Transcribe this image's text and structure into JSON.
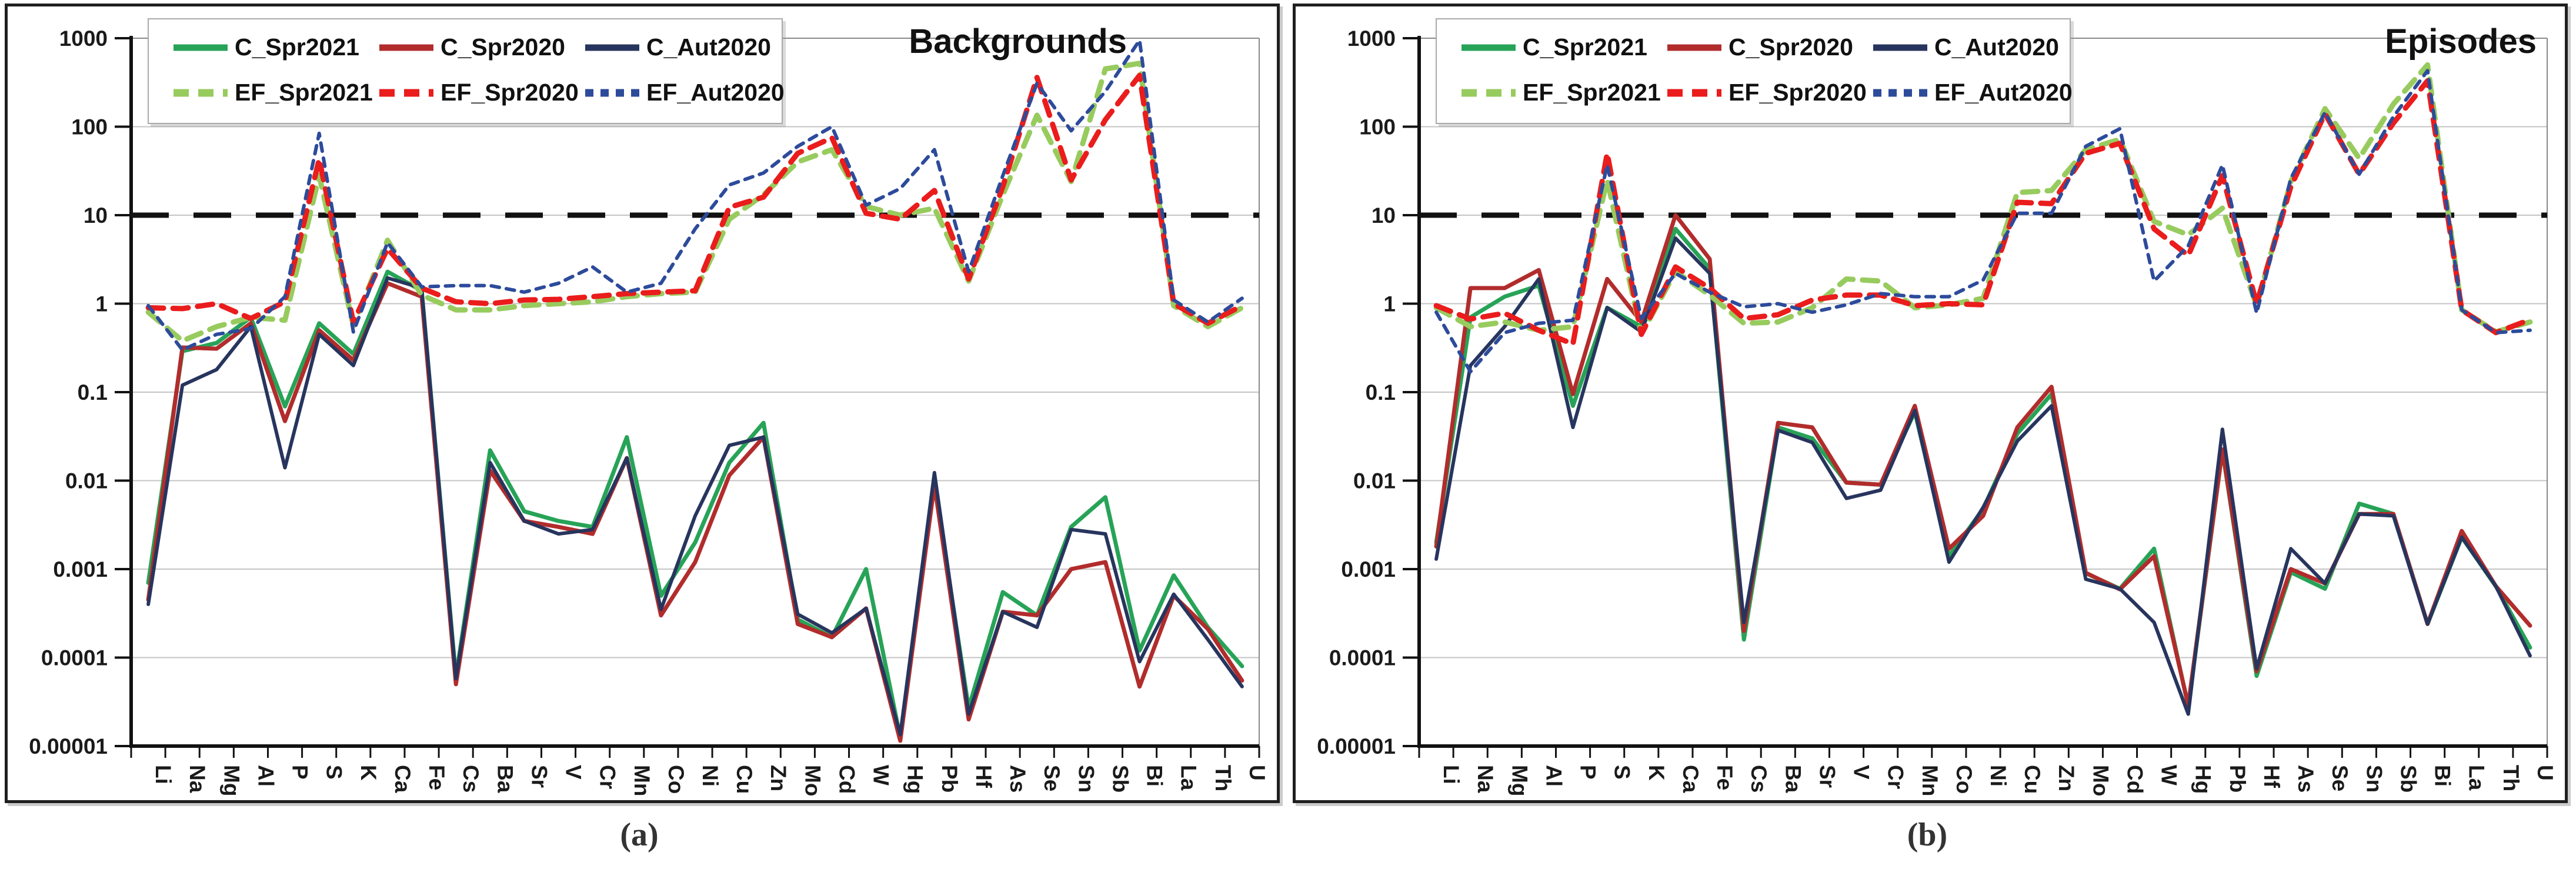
{
  "page": {
    "background": "#ffffff"
  },
  "axis": {
    "y_scale": "log",
    "ylim": [
      1e-05,
      1000
    ],
    "y_tick_labels": [
      "1000",
      "100",
      "10",
      "1",
      "0.1",
      "0.01",
      "0.001",
      "0.0001",
      "0.00001"
    ],
    "grid": "horizontal-log-decades",
    "threshold_line": {
      "y": 10,
      "style": "dashed",
      "color": "#111111"
    },
    "legend_position": "top-left"
  },
  "charts": [
    {
      "panel": "a",
      "caption": "(a)",
      "chart_data": {
        "type": "line",
        "title": "Backgrounds",
        "y_scale": "log",
        "ylim": [
          1e-05,
          1000
        ],
        "y_tick_labels": [
          "1000",
          "100",
          "10",
          "1",
          "0.1",
          "0.01",
          "0.001",
          "0.0001",
          "0.00001"
        ],
        "threshold_line": {
          "y": 10,
          "style": "dashed",
          "color": "#111111"
        },
        "x_categories": [
          "Li",
          "Na",
          "Mg",
          "Al",
          "P",
          "S",
          "K",
          "Ca",
          "Fe",
          "Cs",
          "Ba",
          "Sr",
          "V",
          "Cr",
          "Mn",
          "Co",
          "Ni",
          "Cu",
          "Zn",
          "Mo",
          "Cd",
          "W",
          "Hg",
          "Pb",
          "Hf",
          "As",
          "Se",
          "Sn",
          "Sb",
          "Bi",
          "La",
          "Th",
          "U"
        ],
        "series": [
          {
            "name": "C_Spr2021",
            "color": "#27a357",
            "dash": null,
            "width": 7,
            "values": [
              0.0007,
              0.29,
              0.36,
              0.7,
              0.069,
              0.6,
              0.27,
              2.3,
              1.4,
              6e-05,
              0.022,
              0.0045,
              0.0035,
              0.003,
              0.031,
              0.0005,
              0.002,
              0.016,
              0.045,
              0.00027,
              0.00017,
              0.001,
              1.25e-05,
              0.0095,
              2.7e-05,
              0.00055,
              0.0003,
              0.003,
              0.0065,
              0.00012,
              0.00085,
              0.00022,
              8e-05
            ]
          },
          {
            "name": "C_Spr2020",
            "color": "#b22c2c",
            "dash": null,
            "width": 7,
            "values": [
              0.00045,
              0.32,
              0.31,
              0.6,
              0.047,
              0.5,
              0.23,
              1.7,
              1.2,
              5e-05,
              0.013,
              0.0035,
              0.003,
              0.0025,
              0.018,
              0.0003,
              0.0012,
              0.0115,
              0.031,
              0.00024,
              0.00017,
              0.00036,
              1.15e-05,
              0.009,
              2e-05,
              0.00033,
              0.0003,
              0.001,
              0.0012,
              4.7e-05,
              0.0005,
              0.00021,
              5.5e-05
            ]
          },
          {
            "name": "C_Aut2020",
            "color": "#27355e",
            "dash": null,
            "width": 6,
            "values": [
              0.0004,
              0.12,
              0.18,
              0.55,
              0.014,
              0.45,
              0.2,
              1.95,
              1.5,
              5.8e-05,
              0.016,
              0.0035,
              0.0025,
              0.0028,
              0.018,
              0.00035,
              0.004,
              0.025,
              0.031,
              0.00031,
              0.00019,
              0.00036,
              1.35e-05,
              0.0123,
              2.3e-05,
              0.00033,
              0.00022,
              0.0028,
              0.0025,
              9e-05,
              0.00052,
              0.00016,
              4.7e-05
            ]
          },
          {
            "name": "EF_Spr2021",
            "color": "#98cb5e",
            "dash": "26 16",
            "width": 9,
            "values": [
              0.8,
              0.38,
              0.55,
              0.7,
              0.65,
              28,
              0.56,
              5.2,
              1.25,
              0.85,
              0.85,
              0.95,
              1.0,
              1.05,
              1.2,
              1.3,
              1.35,
              9,
              17,
              40,
              55,
              12.5,
              10,
              12,
              1.8,
              17,
              135,
              24,
              450,
              520,
              0.95,
              0.55,
              0.9
            ]
          },
          {
            "name": "EF_Spr2020",
            "color": "#ea1c1c",
            "dash": "26 16",
            "width": 9,
            "values": [
              0.9,
              0.88,
              1.0,
              0.68,
              1.05,
              43,
              0.62,
              4.2,
              1.5,
              1.05,
              1.0,
              1.1,
              1.12,
              1.2,
              1.3,
              1.35,
              1.4,
              12.3,
              16,
              50,
              75,
              10.5,
              9,
              19,
              1.9,
              21,
              360,
              25,
              120,
              380,
              1.0,
              0.6,
              0.95
            ]
          },
          {
            "name": "EF_Aut2020",
            "color": "#2d4b9b",
            "dash": "14 12",
            "width": 6,
            "values": [
              0.95,
              0.3,
              0.45,
              0.52,
              1.2,
              84,
              0.48,
              4.9,
              1.55,
              1.6,
              1.6,
              1.35,
              1.7,
              2.6,
              1.35,
              1.7,
              7,
              22,
              30,
              60,
              100,
              13,
              20,
              55,
              2.3,
              28,
              310,
              90,
              250,
              950,
              1.1,
              0.62,
              1.15
            ]
          }
        ]
      }
    },
    {
      "panel": "b",
      "caption": "(b)",
      "chart_data": {
        "type": "line",
        "title": "Episodes",
        "y_scale": "log",
        "ylim": [
          1e-05,
          1000
        ],
        "y_tick_labels": [
          "1000",
          "100",
          "10",
          "1",
          "0.1",
          "0.01",
          "0.001",
          "0.0001",
          "0.00001"
        ],
        "threshold_line": {
          "y": 10,
          "style": "dashed",
          "color": "#111111"
        },
        "x_categories": [
          "Li",
          "Na",
          "Mg",
          "Al",
          "P",
          "S",
          "K",
          "Ca",
          "Fe",
          "Cs",
          "Ba",
          "Sr",
          "V",
          "Cr",
          "Mn",
          "Co",
          "Ni",
          "Cu",
          "Zn",
          "Mo",
          "Cd",
          "W",
          "Hg",
          "Pb",
          "Hf",
          "As",
          "Se",
          "Sn",
          "Sb",
          "Bi",
          "La",
          "Th",
          "U"
        ],
        "series": [
          {
            "name": "C_Spr2021",
            "color": "#27a357",
            "dash": null,
            "width": 7,
            "values": [
              0.002,
              0.7,
              1.2,
              1.6,
              0.07,
              0.9,
              0.55,
              7,
              2.5,
              0.00016,
              0.04,
              0.03,
              0.0095,
              0.009,
              0.06,
              0.0014,
              0.0048,
              0.034,
              0.095,
              0.0009,
              0.0006,
              0.0017,
              2.8e-05,
              0.022,
              6.2e-05,
              0.00092,
              0.0006,
              0.0055,
              0.0042,
              0.00024,
              0.0023,
              0.00064,
              0.00013
            ]
          },
          {
            "name": "C_Spr2020",
            "color": "#b22c2c",
            "dash": null,
            "width": 7,
            "values": [
              0.0018,
              1.5,
              1.5,
              2.4,
              0.095,
              1.9,
              0.62,
              10,
              3.2,
              0.0002,
              0.045,
              0.04,
              0.0095,
              0.009,
              0.07,
              0.0017,
              0.004,
              0.04,
              0.115,
              0.00091,
              0.00059,
              0.0014,
              2.9e-05,
              0.0225,
              7e-05,
              0.001,
              0.00069,
              0.0042,
              0.0042,
              0.00024,
              0.0027,
              0.00064,
              0.00023
            ]
          },
          {
            "name": "C_Aut2020",
            "color": "#27355e",
            "dash": null,
            "width": 6,
            "values": [
              0.0013,
              0.2,
              0.55,
              1.9,
              0.04,
              0.9,
              0.48,
              5.5,
              2.2,
              0.00025,
              0.037,
              0.027,
              0.0063,
              0.0078,
              0.062,
              0.0012,
              0.005,
              0.028,
              0.07,
              0.00077,
              0.0006,
              0.00025,
              2.3e-05,
              0.038,
              7.5e-05,
              0.0017,
              0.00069,
              0.0042,
              0.004,
              0.00024,
              0.0023,
              0.00064,
              0.000105
            ]
          },
          {
            "name": "EF_Spr2021",
            "color": "#98cb5e",
            "dash": "26 16",
            "width": 9,
            "values": [
              0.9,
              0.55,
              0.62,
              0.5,
              0.55,
              25,
              0.45,
              2.3,
              1.25,
              0.6,
              0.62,
              0.9,
              1.9,
              1.8,
              0.9,
              0.97,
              1.15,
              18,
              19,
              55,
              72,
              8.5,
              6,
              12,
              0.95,
              24,
              160,
              44,
              180,
              500,
              0.85,
              0.48,
              0.62
            ]
          },
          {
            "name": "EF_Spr2020",
            "color": "#ea1c1c",
            "dash": "26 16",
            "width": 9,
            "values": [
              0.95,
              0.67,
              0.78,
              0.5,
              0.35,
              50,
              0.45,
              2.6,
              1.5,
              0.68,
              0.75,
              1.1,
              1.25,
              1.25,
              0.95,
              1.0,
              0.97,
              14,
              13.5,
              50,
              65,
              7,
              3.5,
              28,
              1.0,
              21,
              140,
              29,
              110,
              330,
              0.85,
              0.47,
              0.66
            ]
          },
          {
            "name": "EF_Aut2020",
            "color": "#2d4b9b",
            "dash": "14 12",
            "width": 6,
            "values": [
              0.8,
              0.17,
              0.47,
              0.6,
              0.65,
              37,
              0.68,
              2.2,
              1.35,
              0.92,
              1.0,
              0.8,
              0.97,
              1.3,
              1.2,
              1.2,
              1.85,
              10.5,
              10.5,
              60,
              95,
              1.8,
              4.5,
              37,
              0.78,
              26,
              145,
              29,
              130,
              430,
              0.85,
              0.47,
              0.5
            ]
          }
        ]
      }
    }
  ]
}
